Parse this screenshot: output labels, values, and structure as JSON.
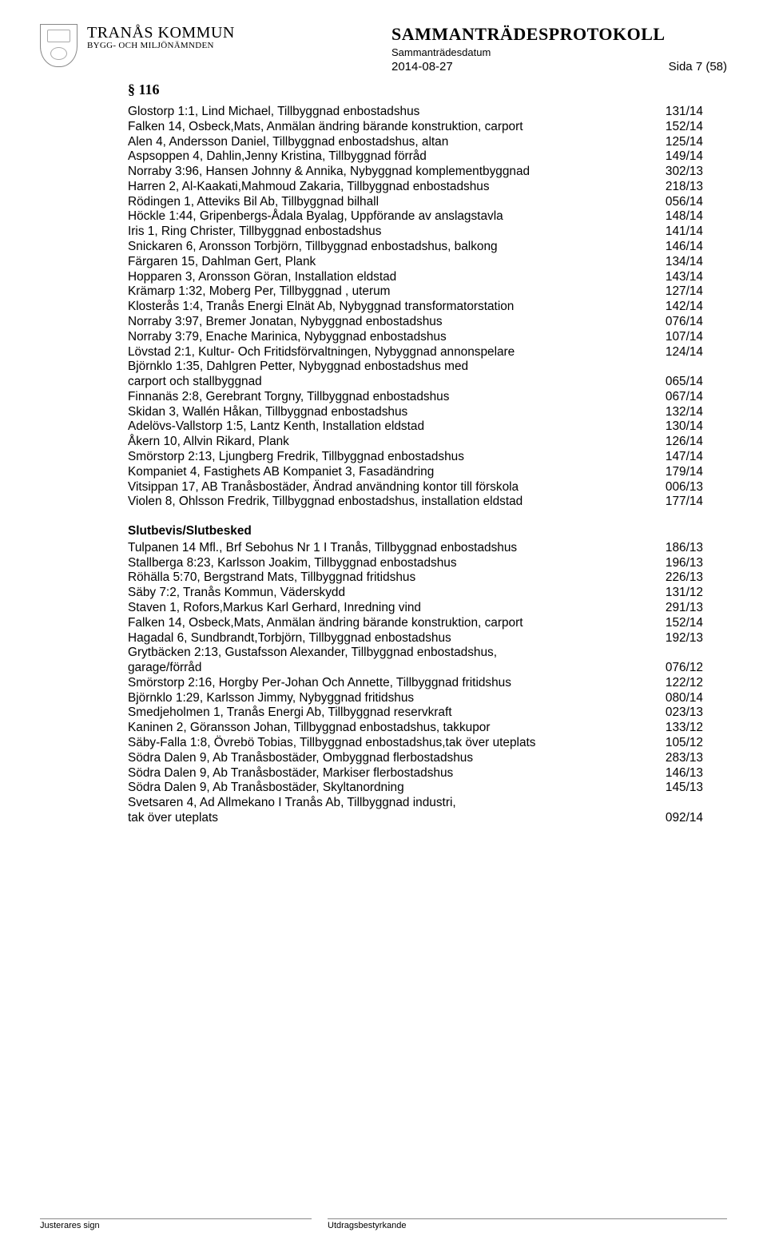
{
  "header": {
    "org_name": "TRANÅS KOMMUN",
    "org_sub": "BYGG- OCH MILJÖNÄMNDEN",
    "title": "SAMMANTRÄDESPROTOKOLL",
    "date_label": "Sammanträdesdatum",
    "date": "2014-08-27",
    "page_info": "Sida 7 (58)"
  },
  "section": "§ 116",
  "main_rows": [
    {
      "desc": "Glostorp 1:1, Lind Michael, Tillbyggnad enbostadshus",
      "code": "131/14"
    },
    {
      "desc": "Falken 14, Osbeck,Mats, Anmälan ändring bärande konstruktion, carport",
      "code": "152/14"
    },
    {
      "desc": "Alen 4, Andersson Daniel, Tillbyggnad enbostadshus, altan",
      "code": "125/14"
    },
    {
      "desc": "Aspsoppen 4, Dahlin,Jenny Kristina, Tillbyggnad förråd",
      "code": "149/14"
    },
    {
      "desc": "Norraby 3:96, Hansen Johnny & Annika, Nybyggnad komplementbyggnad",
      "code": "302/13"
    },
    {
      "desc": "Harren 2, Al-Kaakati,Mahmoud Zakaria, Tillbyggnad enbostadshus",
      "code": "218/13"
    },
    {
      "desc": "Rödingen 1, Atteviks Bil Ab, Tillbyggnad bilhall",
      "code": "056/14"
    },
    {
      "desc": "Höckle 1:44, Gripenbergs-Ådala Byalag, Uppförande av anslagstavla",
      "code": "148/14"
    },
    {
      "desc": "Iris 1, Ring Christer, Tillbyggnad enbostadshus",
      "code": "141/14"
    },
    {
      "desc": "Snickaren 6, Aronsson Torbjörn, Tillbyggnad enbostadshus, balkong",
      "code": "146/14"
    },
    {
      "desc": "Färgaren 15, Dahlman Gert, Plank",
      "code": "134/14"
    },
    {
      "desc": "Hopparen 3, Aronsson Göran, Installation eldstad",
      "code": "143/14"
    },
    {
      "desc": "Krämarp 1:32, Moberg Per, Tillbyggnad , uterum",
      "code": "127/14"
    },
    {
      "desc": "Klosterås 1:4, Tranås Energi Elnät Ab, Nybyggnad transformatorstation",
      "code": "142/14"
    },
    {
      "desc": "Norraby 3:97, Bremer Jonatan, Nybyggnad enbostadshus",
      "code": "076/14"
    },
    {
      "desc": "Norraby 3:79, Enache Marinica, Nybyggnad enbostadshus",
      "code": "107/14"
    },
    {
      "desc": "Lövstad 2:1, Kultur- Och Fritidsförvaltningen, Nybyggnad annonspelare",
      "code": "124/14"
    },
    {
      "desc": "Björnklo 1:35, Dahlgren Petter, Nybyggnad enbostadshus med",
      "code": ""
    },
    {
      "desc": "carport och stallbyggnad",
      "code": "065/14"
    },
    {
      "desc": "Finnanäs 2:8, Gerebrant Torgny, Tillbyggnad enbostadshus",
      "code": "067/14"
    },
    {
      "desc": "Skidan 3, Wallén Håkan, Tillbyggnad enbostadshus",
      "code": "132/14"
    },
    {
      "desc": "Adelövs-Vallstorp 1:5, Lantz Kenth, Installation eldstad",
      "code": "130/14"
    },
    {
      "desc": "Åkern 10, Allvin Rikard, Plank",
      "code": "126/14"
    },
    {
      "desc": "Smörstorp 2:13, Ljungberg Fredrik, Tillbyggnad enbostadshus",
      "code": "147/14"
    },
    {
      "desc": "Kompaniet 4, Fastighets AB Kompaniet 3, Fasadändring",
      "code": "179/14"
    },
    {
      "desc": "Vitsippan 17, AB Tranåsbostäder, Ändrad användning kontor till förskola",
      "code": "006/13"
    },
    {
      "desc": "Violen 8, Ohlsson Fredrik, Tillbyggnad enbostadshus, installation eldstad",
      "code": "177/14"
    }
  ],
  "sub_heading": "Slutbevis/Slutbesked",
  "sub_rows": [
    {
      "desc": "Tulpanen 14 Mfl., Brf Sebohus Nr 1 I Tranås, Tillbyggnad enbostadshus",
      "code": "186/13"
    },
    {
      "desc": "Stallberga 8:23, Karlsson Joakim, Tillbyggnad enbostadshus",
      "code": "196/13"
    },
    {
      "desc": "Röhälla 5:70, Bergstrand Mats, Tillbyggnad fritidshus",
      "code": "226/13"
    },
    {
      "desc": "Säby 7:2, Tranås Kommun, Väderskydd",
      "code": "131/12"
    },
    {
      "desc": "Staven 1, Rofors,Markus Karl Gerhard, Inredning vind",
      "code": "291/13"
    },
    {
      "desc": "Falken 14, Osbeck,Mats, Anmälan ändring bärande konstruktion, carport",
      "code": "152/14"
    },
    {
      "desc": "Hagadal 6, Sundbrandt,Torbjörn, Tillbyggnad enbostadshus",
      "code": "192/13"
    },
    {
      "desc": "Grytbäcken 2:13, Gustafsson Alexander, Tillbyggnad enbostadshus,",
      "code": ""
    },
    {
      "desc": "garage/förråd",
      "code": "076/12"
    },
    {
      "desc": "Smörstorp 2:16, Horgby Per-Johan Och Annette, Tillbyggnad fritidshus",
      "code": "122/12"
    },
    {
      "desc": "Björnklo 1:29, Karlsson Jimmy, Nybyggnad fritidshus",
      "code": "080/14"
    },
    {
      "desc": "Smedjeholmen 1, Tranås Energi Ab, Tillbyggnad reservkraft",
      "code": "023/13"
    },
    {
      "desc": "Kaninen 2, Göransson Johan, Tillbyggnad enbostadshus, takkupor",
      "code": "133/12"
    },
    {
      "desc": "Säby-Falla 1:8, Övrebö Tobias, Tillbyggnad enbostadshus,tak över uteplats",
      "code": "105/12"
    },
    {
      "desc": "Södra Dalen 9, Ab Tranåsbostäder, Ombyggnad flerbostadshus",
      "code": "283/13"
    },
    {
      "desc": "Södra Dalen 9, Ab Tranåsbostäder, Markiser flerbostadshus",
      "code": "146/13"
    },
    {
      "desc": "Södra Dalen 9, Ab Tranåsbostäder, Skyltanordning",
      "code": "145/13"
    },
    {
      "desc": "Svetsaren 4, Ad Allmekano I Tranås Ab, Tillbyggnad industri,",
      "code": ""
    },
    {
      "desc": "tak över uteplats",
      "code": "092/14"
    }
  ],
  "footer": {
    "left": "Justerares sign",
    "right": "Utdragsbestyrkande"
  }
}
